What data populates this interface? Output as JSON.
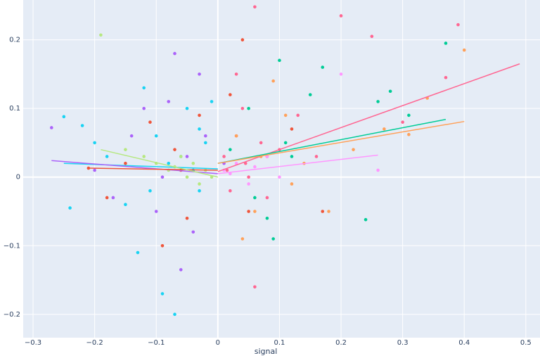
{
  "chart_data": {
    "type": "scatter",
    "x_label": "signal",
    "xlim": [
      -0.316,
      0.523
    ],
    "ylim": [
      -0.234,
      0.258
    ],
    "xticks": [
      {
        "value": -0.3,
        "label": "−0.3"
      },
      {
        "value": -0.2,
        "label": "−0.2"
      },
      {
        "value": -0.1,
        "label": "−0.1"
      },
      0,
      0.1,
      0.2,
      0.3,
      0.4,
      0.5
    ],
    "yticks": [
      {
        "value": -0.2,
        "label": "−0.2"
      },
      {
        "value": -0.1,
        "label": "−0.1"
      },
      0,
      0.1,
      0.2
    ],
    "grid": true,
    "series": [
      {
        "color": "#19d3f3",
        "x": [
          -0.25,
          -0.22,
          -0.2,
          -0.18,
          -0.15,
          -0.12,
          -0.1,
          -0.08,
          -0.07,
          -0.05,
          -0.04,
          -0.03,
          -0.02,
          -0.06,
          -0.09,
          -0.13,
          -0.24,
          -0.01,
          -0.11,
          -0.03
        ],
        "values": [
          0.088,
          0.075,
          0.05,
          0.03,
          -0.04,
          0.13,
          0.06,
          0.02,
          -0.2,
          0.1,
          0.01,
          -0.02,
          0.05,
          0.03,
          -0.17,
          -0.11,
          -0.045,
          0.11,
          -0.02,
          0.07
        ],
        "trend": {
          "x": [
            -0.25,
            0
          ],
          "y": [
            0.02,
            0.012
          ]
        }
      },
      {
        "color": "#ab63fa",
        "x": [
          -0.27,
          -0.2,
          -0.17,
          -0.14,
          -0.12,
          -0.1,
          -0.08,
          -0.06,
          -0.05,
          -0.03,
          -0.02,
          -0.09,
          -0.07,
          -0.04,
          0.01
        ],
        "values": [
          0.072,
          0.01,
          -0.03,
          0.06,
          0.1,
          -0.05,
          0.11,
          -0.135,
          0.03,
          0.15,
          0.06,
          0,
          0.18,
          -0.08,
          0.02
        ],
        "trend": {
          "x": [
            -0.27,
            0
          ],
          "y": [
            0.024,
            0.005
          ]
        }
      },
      {
        "color": "#EF553B",
        "x": [
          -0.21,
          -0.18,
          -0.15,
          -0.11,
          -0.09,
          -0.07,
          -0.05,
          -0.03,
          0.02,
          0.05,
          0.08,
          0.12,
          0.17,
          -0.06,
          0.04
        ],
        "values": [
          0.013,
          -0.03,
          0.02,
          0.08,
          -0.1,
          0.04,
          -0.06,
          0.09,
          0.12,
          -0.05,
          0.03,
          0.07,
          -0.05,
          0.01,
          0.2
        ],
        "trend": {
          "x": [
            -0.21,
            0
          ],
          "y": [
            0.013,
            0.01
          ]
        }
      },
      {
        "color": "#B6E880",
        "x": [
          -0.19,
          -0.15,
          -0.12,
          -0.1,
          -0.08,
          -0.06,
          -0.05,
          -0.04,
          -0.03,
          -0.02,
          -0.01,
          -0.07
        ],
        "values": [
          0.207,
          0.04,
          0.03,
          0.02,
          0.01,
          0.03,
          0,
          0.02,
          -0.01,
          0.01,
          0,
          0.015
        ],
        "trend": {
          "x": [
            -0.19,
            0
          ],
          "y": [
            0.04,
            0
          ]
        }
      },
      {
        "color": "#FF6692",
        "x": [
          0.01,
          0.02,
          0.03,
          0.04,
          0.05,
          0.06,
          0.07,
          0.08,
          0.1,
          0.13,
          0.16,
          0.2,
          0.25,
          0.3,
          0.39,
          0.37,
          0.06,
          0.03,
          0.015,
          0.045
        ],
        "values": [
          0.03,
          -0.02,
          0.06,
          0.1,
          0,
          0.248,
          0.05,
          -0.03,
          0.04,
          0.09,
          0.03,
          0.235,
          0.205,
          0.08,
          0.222,
          0.145,
          -0.16,
          0.15,
          0.01,
          0.02
        ],
        "trend": {
          "x": [
            0,
            0.49
          ],
          "y": [
            0.008,
            0.165
          ]
        }
      },
      {
        "color": "#00cc96",
        "x": [
          0.02,
          0.05,
          0.08,
          0.1,
          0.12,
          0.15,
          0.17,
          0.24,
          0.26,
          0.28,
          0.31,
          0.37,
          0.06,
          0.09,
          0.11
        ],
        "values": [
          0.04,
          0.1,
          -0.06,
          0.17,
          0.03,
          0.12,
          0.16,
          -0.062,
          0.11,
          0.125,
          0.09,
          0.195,
          -0.03,
          -0.09,
          0.05
        ],
        "trend": {
          "x": [
            0,
            0.37
          ],
          "y": [
            0.02,
            0.084
          ]
        }
      },
      {
        "color": "#FFA15A",
        "x": [
          0.03,
          0.06,
          0.09,
          0.11,
          0.14,
          0.18,
          0.22,
          0.27,
          0.31,
          0.34,
          0.4,
          0.07,
          0.04,
          0.12
        ],
        "values": [
          0.06,
          -0.05,
          0.14,
          0.09,
          0.02,
          -0.05,
          0.04,
          0.07,
          0.062,
          0.115,
          0.185,
          0.03,
          -0.09,
          -0.01
        ],
        "trend": {
          "x": [
            0,
            0.4
          ],
          "y": [
            0.02,
            0.081
          ]
        }
      },
      {
        "color": "#FF97FF",
        "x": [
          0.01,
          0.03,
          0.05,
          0.08,
          0.1,
          0.2,
          0.26,
          0.06,
          0.02
        ],
        "values": [
          0.01,
          0.02,
          -0.01,
          0.03,
          0,
          0.15,
          0.01,
          0.015,
          0.005
        ],
        "trend": {
          "x": [
            0,
            0.26
          ],
          "y": [
            0.005,
            0.032
          ]
        }
      }
    ]
  }
}
